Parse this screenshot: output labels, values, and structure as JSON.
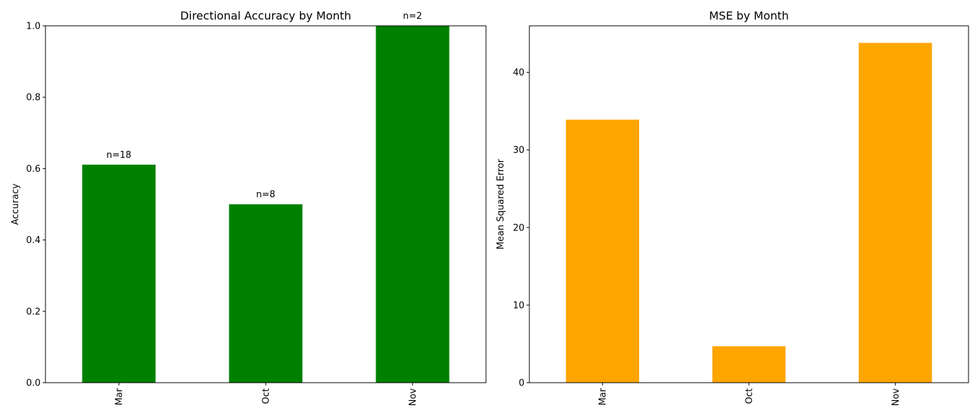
{
  "chart_data": [
    {
      "type": "bar",
      "title": "Directional Accuracy by Month",
      "xlabel": "",
      "ylabel": "Accuracy",
      "categories": [
        "Mar",
        "Oct",
        "Nov"
      ],
      "values": [
        0.611,
        0.5,
        1.0
      ],
      "annotations": [
        "n=18",
        "n=8",
        "n=2"
      ],
      "ylim": [
        0,
        1.0
      ],
      "yticks": [
        0.0,
        0.2,
        0.4,
        0.6,
        0.8,
        1.0
      ],
      "ytick_labels": [
        "0.0",
        "0.2",
        "0.4",
        "0.6",
        "0.8",
        "1.0"
      ],
      "color": "#008000",
      "grid": false,
      "legend": false
    },
    {
      "type": "bar",
      "title": "MSE by Month",
      "xlabel": "",
      "ylabel": "Mean Squared Error",
      "categories": [
        "Mar",
        "Oct",
        "Nov"
      ],
      "values": [
        33.9,
        4.7,
        43.8
      ],
      "ylim": [
        0,
        46
      ],
      "yticks": [
        0,
        10,
        20,
        30,
        40
      ],
      "ytick_labels": [
        "0",
        "10",
        "20",
        "30",
        "40"
      ],
      "color": "#FFA500",
      "grid": false,
      "legend": false
    }
  ]
}
